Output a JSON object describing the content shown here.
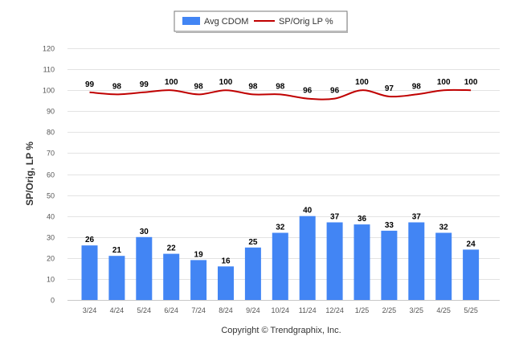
{
  "chart_data": {
    "type": "bar",
    "categories": [
      "3/24",
      "4/24",
      "5/24",
      "6/24",
      "7/24",
      "8/24",
      "9/24",
      "10/24",
      "11/24",
      "12/24",
      "1/25",
      "2/25",
      "3/25",
      "4/25",
      "5/25"
    ],
    "series": [
      {
        "name": "Avg CDOM",
        "type": "bar",
        "color": "#4285f4",
        "values": [
          26,
          21,
          30,
          22,
          19,
          16,
          25,
          32,
          40,
          37,
          36,
          33,
          37,
          32,
          24
        ]
      },
      {
        "name": "SP/Orig LP %",
        "type": "line",
        "color": "#c00000",
        "values": [
          99,
          98,
          99,
          100,
          98,
          100,
          98,
          98,
          96,
          96,
          100,
          97,
          98,
          100,
          100
        ]
      }
    ],
    "ylabel": "SP/Orig, LP %",
    "ylim": [
      0,
      120
    ],
    "yticks": [
      0,
      10,
      20,
      30,
      40,
      50,
      60,
      70,
      80,
      90,
      100,
      110,
      120
    ],
    "grid": true,
    "legend_position": "top-center"
  },
  "footer": {
    "copyright": "Copyright © Trendgraphix, Inc."
  }
}
